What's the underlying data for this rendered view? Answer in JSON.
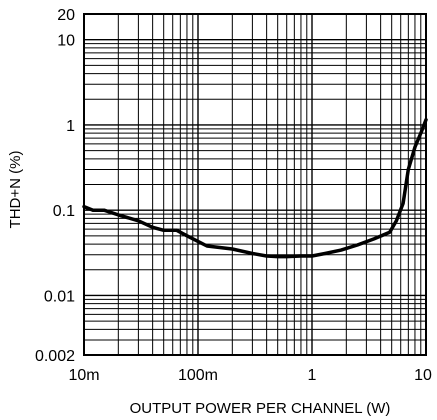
{
  "chart_data": {
    "type": "line",
    "title": "",
    "xlabel": "OUTPUT POWER PER CHANNEL (W)",
    "ylabel": "THD+N (%)",
    "x_scale": "log",
    "y_scale": "log",
    "xlim": [
      0.01,
      10
    ],
    "ylim": [
      0.002,
      20
    ],
    "grid": true,
    "x_ticks": [
      {
        "value": 0.01,
        "label": "10m"
      },
      {
        "value": 0.1,
        "label": "100m"
      },
      {
        "value": 1,
        "label": "1"
      },
      {
        "value": 10,
        "label": "10"
      }
    ],
    "y_ticks": [
      {
        "value": 0.002,
        "label": "0.002"
      },
      {
        "value": 0.01,
        "label": "0.01"
      },
      {
        "value": 0.1,
        "label": "0.1"
      },
      {
        "value": 1,
        "label": "1"
      },
      {
        "value": 10,
        "label": "10"
      },
      {
        "value": 20,
        "label": "20"
      }
    ],
    "series": [
      {
        "color": "#000000",
        "points": [
          [
            0.01,
            0.11
          ],
          [
            0.012,
            0.1
          ],
          [
            0.015,
            0.1
          ],
          [
            0.02,
            0.088
          ],
          [
            0.03,
            0.075
          ],
          [
            0.04,
            0.063
          ],
          [
            0.05,
            0.058
          ],
          [
            0.065,
            0.058
          ],
          [
            0.08,
            0.05
          ],
          [
            0.1,
            0.043
          ],
          [
            0.12,
            0.038
          ],
          [
            0.2,
            0.035
          ],
          [
            0.3,
            0.031
          ],
          [
            0.4,
            0.029
          ],
          [
            0.5,
            0.0285
          ],
          [
            0.6,
            0.0285
          ],
          [
            0.8,
            0.029
          ],
          [
            1.0,
            0.029
          ],
          [
            1.3,
            0.031
          ],
          [
            1.8,
            0.034
          ],
          [
            2.5,
            0.039
          ],
          [
            3.5,
            0.046
          ],
          [
            4.8,
            0.055
          ],
          [
            5.5,
            0.075
          ],
          [
            6.3,
            0.12
          ],
          [
            7.0,
            0.3
          ],
          [
            8.0,
            0.55
          ],
          [
            9.0,
            0.8
          ],
          [
            10.0,
            1.15
          ]
        ]
      }
    ]
  }
}
